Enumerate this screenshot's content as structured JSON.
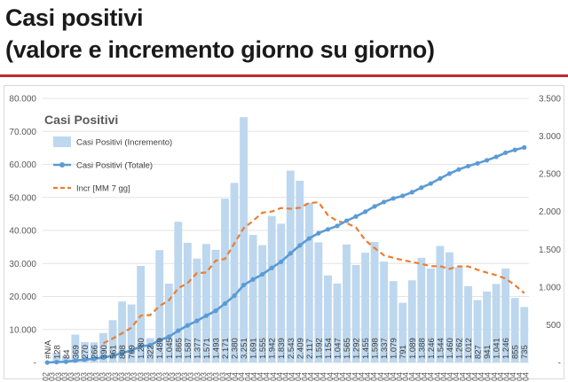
{
  "slide": {
    "title_line1": "Casi positivi",
    "title_line2": "(valore e incremento giorno su giorno)"
  },
  "colors": {
    "title_rule": "#c0282e",
    "bars": "#bdd7ee",
    "total_line": "#5b9bd5",
    "moving_avg": "#ed7d31"
  },
  "chart_data": {
    "type": "bar",
    "title": "Casi Positivi",
    "legend": [
      {
        "label": "Casi Positivi (Incremento)",
        "kind": "bar"
      },
      {
        "label": "Casi Positivi (Totale)",
        "kind": "line-marker"
      },
      {
        "label": "Incr [MM 7 gg]",
        "kind": "dashed-line"
      }
    ],
    "legend_position": "top-left",
    "left_axis": {
      "min": 0,
      "max": 80000,
      "ticks": [
        "-",
        "10.000",
        "20.000",
        "30.000",
        "40.000",
        "50.000",
        "60.000",
        "70.000",
        "80.000"
      ]
    },
    "right_axis": {
      "min": 0,
      "max": 3500,
      "ticks": [
        "-",
        "500",
        "1.000",
        "1.500",
        "2.000",
        "2.500",
        "3.000",
        "3.500"
      ]
    },
    "grid": true,
    "x_tick_fragments": [
      "02",
      "03",
      "03",
      "03",
      "03",
      "03",
      "03",
      "03",
      "03",
      "03",
      "03",
      "03",
      "03",
      "03",
      "03",
      "03",
      "03",
      "03",
      "03",
      "03",
      "03",
      "03",
      "03",
      "03",
      "03",
      "03",
      "03",
      "03",
      "03",
      "04",
      "04",
      "04",
      "04",
      "04",
      "04",
      "04",
      "04",
      "04",
      "04",
      "04",
      "04",
      "04",
      "04",
      "04",
      "04",
      "04",
      "04",
      "04",
      "04",
      "04",
      "04",
      "04",
      "04",
      "04",
      "04",
      "04",
      "04",
      "04",
      "04",
      "04",
      "04",
      "04",
      "04",
      "04",
      "04",
      "04",
      "04",
      "04",
      "04",
      "04",
      "04",
      "04",
      "04",
      "04",
      "04",
      "04",
      "04"
    ],
    "bar_labels": [
      "#N/A",
      "128",
      "84",
      "369",
      "270",
      "266",
      "390",
      "561",
      "808",
      "769",
      "1.280",
      "322",
      "1.489",
      "1.045",
      "1.865",
      "1.587",
      "1.377",
      "1.571",
      "1.493",
      "2.171",
      "2.380",
      "3.251",
      "1.691",
      "1.555",
      "1.942",
      "1.839",
      "2.543",
      "2.409",
      "2.117",
      "1.592",
      "1.154",
      "1.047",
      "1.565",
      "1.292",
      "1.455",
      "1.598",
      "1.337",
      "1.079",
      "791",
      "1.089",
      "1.388",
      "1.246",
      "1.544",
      "1.460",
      "1.262",
      "1.012",
      "827",
      "941",
      "1.041",
      "1.246",
      "855",
      "735"
    ],
    "increment_values": [
      0,
      128,
      84,
      369,
      270,
      266,
      390,
      561,
      808,
      769,
      1280,
      322,
      1489,
      1045,
      1865,
      1587,
      1377,
      1571,
      1493,
      2171,
      2380,
      3251,
      1691,
      1555,
      1942,
      1839,
      2543,
      2409,
      2117,
      1592,
      1154,
      1047,
      1565,
      1292,
      1455,
      1598,
      1337,
      1079,
      791,
      1089,
      1388,
      1246,
      1544,
      1460,
      1262,
      1012,
      827,
      941,
      1041,
      1246,
      855,
      735
    ],
    "total_values": [
      0,
      128,
      212,
      581,
      851,
      1117,
      1507,
      2068,
      2876,
      3645,
      4925,
      5247,
      6736,
      7781,
      9646,
      11233,
      12610,
      14181,
      15674,
      17845,
      20225,
      23476,
      25167,
      26722,
      28664,
      30503,
      33046,
      35455,
      37572,
      39164,
      40318,
      41365,
      42930,
      44222,
      45677,
      47275,
      48612,
      49691,
      50482,
      51571,
      52959,
      54205,
      55749,
      57209,
      58471,
      59483,
      60310,
      61251,
      62292,
      63538,
      64393,
      65128
    ],
    "moving_avg_values": [
      null,
      null,
      null,
      null,
      null,
      null,
      255,
      318,
      388,
      462,
      621,
      628,
      747,
      825,
      983,
      1051,
      1185,
      1192,
      1350,
      1373,
      1576,
      1781,
      1877,
      1986,
      2000,
      2047,
      2038,
      2051,
      2113,
      2123,
      1953,
      1873,
      1847,
      1790,
      1621,
      1516,
      1420,
      1387,
      1356,
      1332,
      1307,
      1275,
      1277,
      1240,
      1274,
      1273,
      1229,
      1191,
      1157,
      1111,
      1025,
      920
    ]
  }
}
